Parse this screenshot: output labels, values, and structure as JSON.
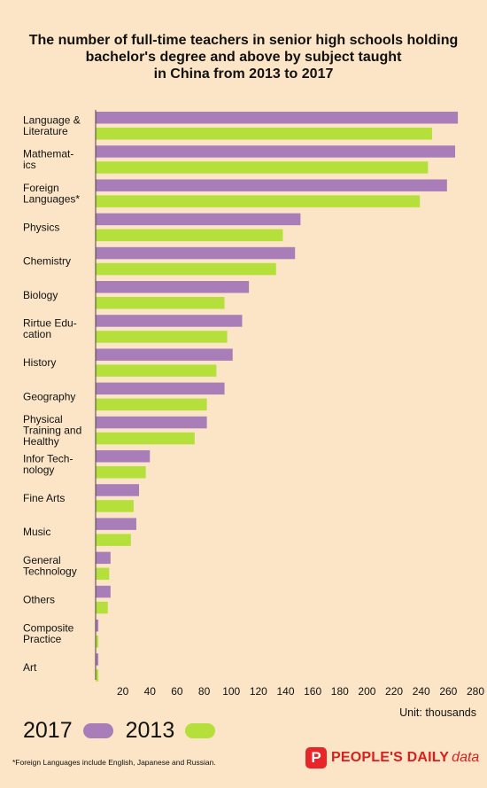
{
  "title_lines": [
    "The number of full-time teachers in senior high schools holding",
    "bachelor's degree and above by subject taught",
    "in China from 2013 to 2017"
  ],
  "unit": "Unit: thousands",
  "footnote": "*Foreign Languages include English, Japanese and Russian.",
  "brand": {
    "logo": "P",
    "name": "PEOPLE'S DAILY",
    "sub": "data"
  },
  "legend": [
    {
      "label": "2017",
      "color": "#a97eb8"
    },
    {
      "label": "2013",
      "color": "#b5e03c"
    }
  ],
  "chart_data": {
    "type": "bar",
    "orientation": "horizontal",
    "categories": [
      [
        "Language &",
        "Literature"
      ],
      [
        "Mathemat-",
        "ics"
      ],
      [
        "Foreign",
        "Languages*"
      ],
      [
        "Physics"
      ],
      [
        "Chemistry"
      ],
      [
        "Biology"
      ],
      [
        "Rirtue Edu-",
        "cation"
      ],
      [
        "History"
      ],
      [
        "Geography"
      ],
      [
        "Physical",
        "Training and",
        "Healthy"
      ],
      [
        "Infor Tech-",
        "nology"
      ],
      [
        "Fine Arts"
      ],
      [
        "Music"
      ],
      [
        "General",
        "Technology"
      ],
      [
        "Others"
      ],
      [
        "Composite",
        "Practice"
      ],
      [
        "Art"
      ]
    ],
    "series": [
      {
        "name": "2017",
        "color": "#a97eb8",
        "values": [
          267,
          265,
          259,
          151,
          147,
          113,
          108,
          101,
          95,
          82,
          40,
          32,
          30,
          11,
          11,
          2,
          2
        ]
      },
      {
        "name": "2013",
        "color": "#b5e03c",
        "values": [
          248,
          245,
          239,
          138,
          133,
          95,
          97,
          89,
          82,
          73,
          37,
          28,
          26,
          10,
          9,
          2,
          2
        ]
      }
    ],
    "xlim": [
      0,
      280
    ],
    "xticks": [
      20,
      40,
      60,
      80,
      100,
      120,
      140,
      160,
      180,
      200,
      220,
      240,
      260,
      280
    ],
    "grid": false
  }
}
